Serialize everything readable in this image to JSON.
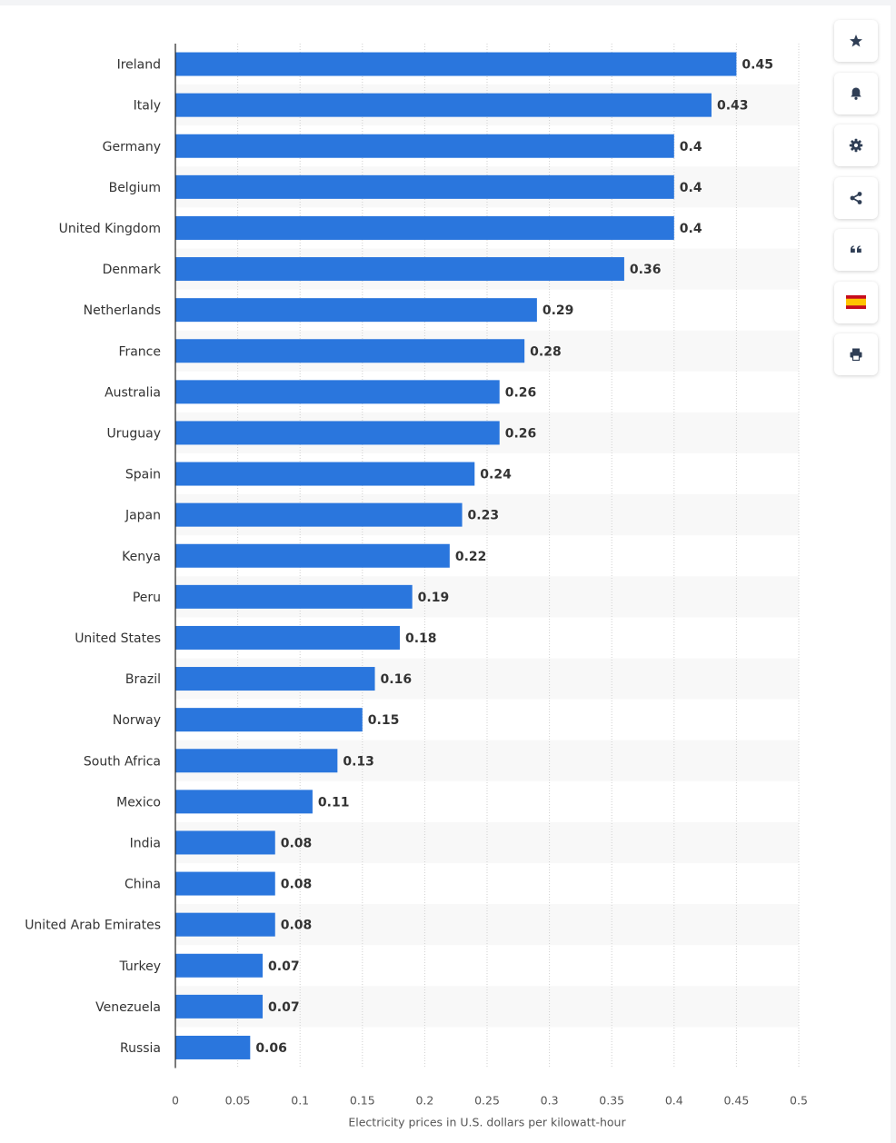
{
  "chart_data": {
    "type": "bar",
    "orientation": "horizontal",
    "categories": [
      "Ireland",
      "Italy",
      "Germany",
      "Belgium",
      "United Kingdom",
      "Denmark",
      "Netherlands",
      "France",
      "Australia",
      "Uruguay",
      "Spain",
      "Japan",
      "Kenya",
      "Peru",
      "United States",
      "Brazil",
      "Norway",
      "South Africa",
      "Mexico",
      "India",
      "China",
      "United Arab Emirates",
      "Turkey",
      "Venezuela",
      "Russia"
    ],
    "values": [
      0.45,
      0.43,
      0.4,
      0.4,
      0.4,
      0.36,
      0.29,
      0.28,
      0.26,
      0.26,
      0.24,
      0.23,
      0.22,
      0.19,
      0.18,
      0.16,
      0.15,
      0.13,
      0.11,
      0.08,
      0.08,
      0.08,
      0.07,
      0.07,
      0.06
    ],
    "value_labels": [
      "0.45",
      "0.43",
      "0.4",
      "0.4",
      "0.4",
      "0.36",
      "0.29",
      "0.28",
      "0.26",
      "0.26",
      "0.24",
      "0.23",
      "0.22",
      "0.19",
      "0.18",
      "0.16",
      "0.15",
      "0.13",
      "0.11",
      "0.08",
      "0.08",
      "0.08",
      "0.07",
      "0.07",
      "0.06"
    ],
    "xticks": [
      0,
      0.05,
      0.1,
      0.15,
      0.2,
      0.25,
      0.3,
      0.35,
      0.4,
      0.45,
      0.5
    ],
    "xtick_labels": [
      "0",
      "0.05",
      "0.1",
      "0.15",
      "0.2",
      "0.25",
      "0.3",
      "0.35",
      "0.4",
      "0.45",
      "0.5"
    ],
    "xlim": [
      0,
      0.5
    ],
    "xlabel": "Electricity prices in U.S. dollars per kilowatt-hour",
    "ylabel": "",
    "grid": true,
    "bar_color": "#2a76dd",
    "band_color": "#f8f8f8"
  },
  "sidebar": {
    "buttons": [
      {
        "name": "favorite-button",
        "icon": "star-icon"
      },
      {
        "name": "notification-button",
        "icon": "bell-icon"
      },
      {
        "name": "settings-button",
        "icon": "gear-icon"
      },
      {
        "name": "share-button",
        "icon": "share-icon"
      },
      {
        "name": "citation-button",
        "icon": "quote-icon"
      },
      {
        "name": "language-button",
        "icon": "spain-flag-icon"
      },
      {
        "name": "print-button",
        "icon": "printer-icon"
      }
    ]
  }
}
